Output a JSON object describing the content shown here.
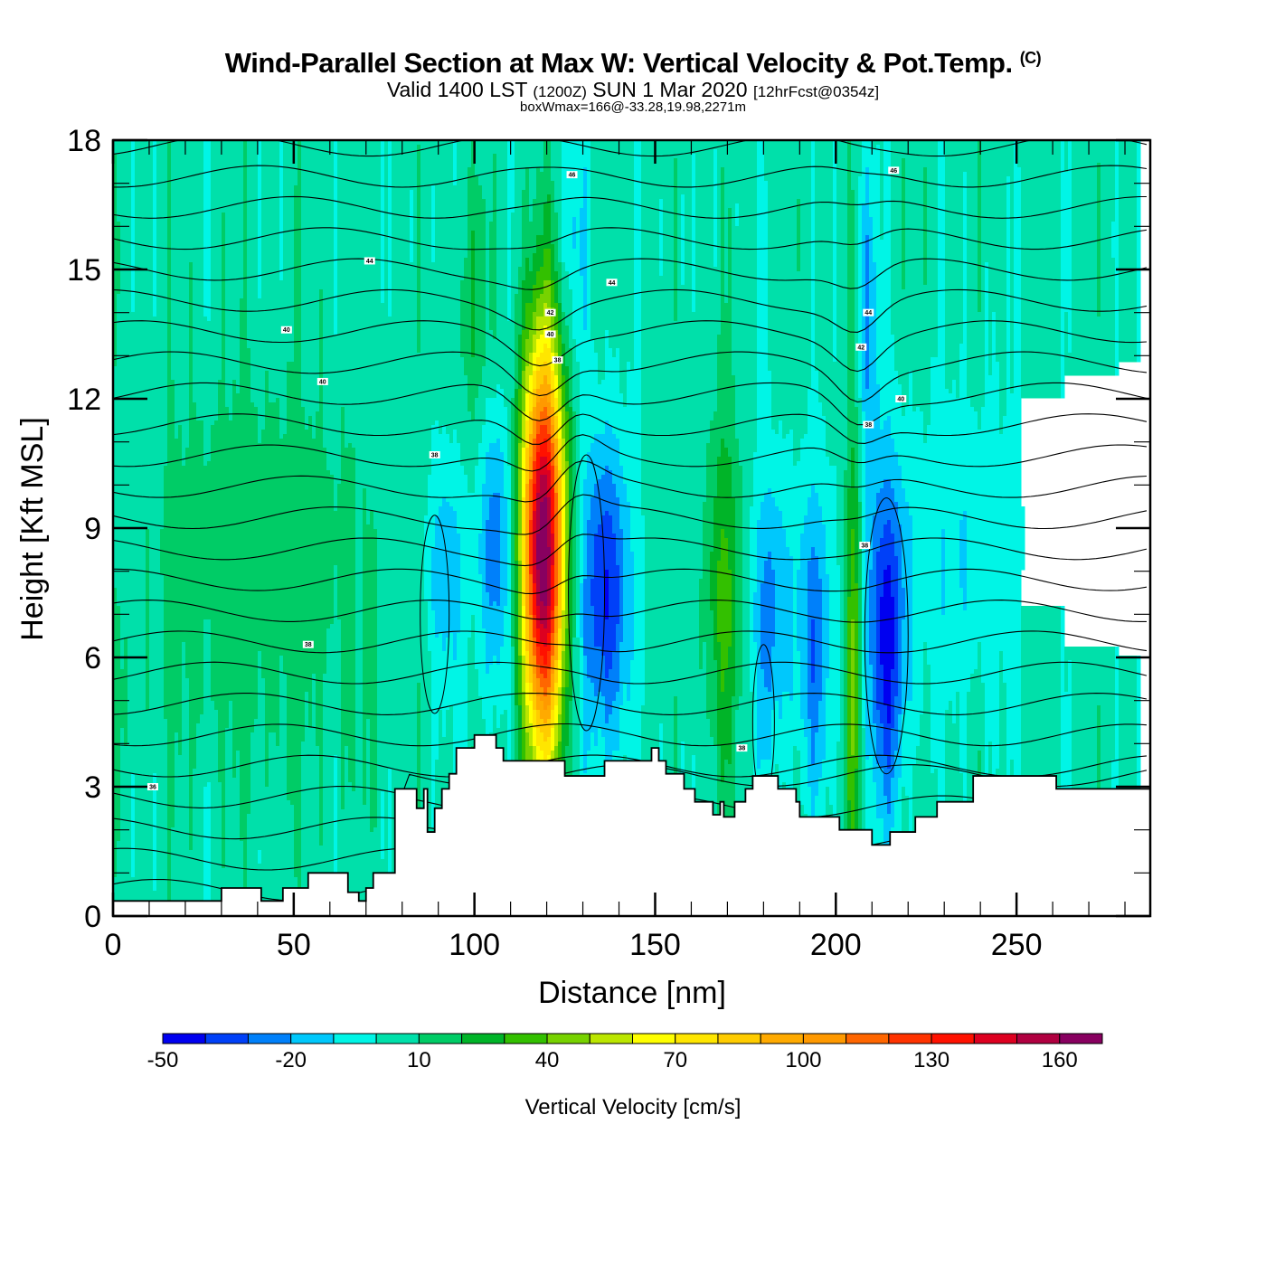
{
  "header": {
    "title": "Wind-Parallel Section at Max W: Vertical Velocity & Pot.Temp.",
    "copyright": "(C)",
    "valid_prefix": "Valid 1400 LST",
    "valid_utc": "(1200Z)",
    "valid_date": "SUN 1 Mar 2020",
    "forecast": "[12hrFcst@0354z]",
    "box_info": "boxWmax=166@-33.28,19.98,2271m"
  },
  "chart_data": {
    "type": "heatmap",
    "title": "Wind-Parallel Section at Max W: Vertical Velocity & Pot.Temp.",
    "xlabel": "Distance [nm]",
    "ylabel": "Height [Kft MSL]",
    "xlim": [
      0,
      287
    ],
    "ylim": [
      0,
      18
    ],
    "xticks": [
      0,
      50,
      100,
      150,
      200,
      250
    ],
    "yticks": [
      0,
      3,
      6,
      9,
      12,
      15,
      18
    ],
    "grid": false,
    "colorbar": {
      "title": "Vertical Velocity [cm/s]",
      "location": "bottom",
      "min": -50,
      "max": 170,
      "step": 10,
      "tick_labels": [
        -50,
        -20,
        10,
        40,
        70,
        100,
        130,
        160
      ],
      "colors": [
        "#0000f0",
        "#0040f8",
        "#0080fa",
        "#00c8fc",
        "#00f5e6",
        "#00e0aa",
        "#00cc66",
        "#00b428",
        "#33c000",
        "#77d200",
        "#bbe600",
        "#ffff00",
        "#ffe600",
        "#ffcc00",
        "#ffaa00",
        "#ff9900",
        "#ff6600",
        "#ff3300",
        "#ff1100",
        "#dd0020",
        "#b00040",
        "#880060"
      ]
    },
    "background_value": 0,
    "velocity_features": [
      {
        "name": "main updraft",
        "x": 119,
        "y": 8.5,
        "peak": 166,
        "sx": 4.2,
        "sy": 3.4
      },
      {
        "name": "downdraft east of updraft",
        "x": 136,
        "y": 7.5,
        "peak": -45,
        "sx": 5,
        "sy": 2.6
      },
      {
        "name": "downdraft west of updraft",
        "x": 106,
        "y": 8.5,
        "peak": -32,
        "sx": 3.5,
        "sy": 2.4
      },
      {
        "name": "weak downdraft",
        "x": 92,
        "y": 8.0,
        "peak": -22,
        "sx": 4,
        "sy": 2
      },
      {
        "name": "updraft band",
        "x": 169,
        "y": 7.5,
        "peak": 28,
        "sx": 3.5,
        "sy": 3
      },
      {
        "name": "downdraft",
        "x": 182,
        "y": 7.0,
        "peak": -28,
        "sx": 4,
        "sy": 2.4
      },
      {
        "name": "downdraft",
        "x": 194,
        "y": 6.5,
        "peak": -30,
        "sx": 3.5,
        "sy": 2.6
      },
      {
        "name": "narrow updraft",
        "x": 205,
        "y": 6.0,
        "peak": 38,
        "sx": 1.6,
        "sy": 3.8
      },
      {
        "name": "downdraft east",
        "x": 214,
        "y": 6.5,
        "peak": -46,
        "sx": 4,
        "sy": 2.8
      },
      {
        "name": "weak downdraft upper",
        "x": 128,
        "y": 15.5,
        "peak": -15,
        "sx": 3,
        "sy": 2.2
      },
      {
        "name": "weak downdraft upper east",
        "x": 209,
        "y": 14.0,
        "peak": -25,
        "sx": 2,
        "sy": 2.5
      },
      {
        "name": "weak updraft west",
        "x": 40,
        "y": 8.0,
        "peak": 12,
        "sx": 25,
        "sy": 3.5
      },
      {
        "name": "weak updraft upper",
        "x": 100,
        "y": 14.0,
        "peak": 14,
        "sx": 4,
        "sy": 2
      },
      {
        "name": "weak downdraft region east",
        "x": 235,
        "y": 8.5,
        "peak": -14,
        "sx": 12,
        "sy": 2.5
      }
    ],
    "theta_contour_labels": [
      "46",
      "44",
      "44",
      "42",
      "40",
      "40",
      "40",
      "38",
      "38",
      "38",
      "36",
      "46",
      "44",
      "42",
      "40",
      "38",
      "38",
      "38"
    ],
    "terrain_kft": {
      "x": [
        0,
        30,
        41,
        47,
        54,
        65,
        68,
        70,
        72,
        78,
        84,
        86,
        87,
        89,
        91,
        93,
        95,
        100,
        106,
        108,
        115,
        125,
        136,
        149,
        151,
        153,
        158,
        161,
        166,
        168,
        169,
        172,
        175,
        177,
        184,
        189,
        190,
        196,
        201,
        210,
        215,
        222,
        228,
        238,
        261,
        287
      ],
      "height": [
        0.35,
        0.65,
        0.35,
        0.65,
        1.0,
        0.55,
        0.35,
        0.65,
        1.0,
        2.95,
        2.5,
        2.95,
        1.95,
        2.5,
        2.95,
        3.3,
        3.9,
        4.2,
        3.9,
        3.6,
        3.6,
        3.25,
        3.6,
        3.9,
        3.6,
        3.3,
        2.95,
        2.65,
        2.35,
        2.65,
        2.3,
        2.65,
        2.95,
        3.25,
        2.95,
        2.65,
        2.3,
        2.3,
        2.0,
        1.65,
        1.95,
        2.3,
        2.65,
        3.25,
        2.95,
        2.95
      ]
    }
  }
}
